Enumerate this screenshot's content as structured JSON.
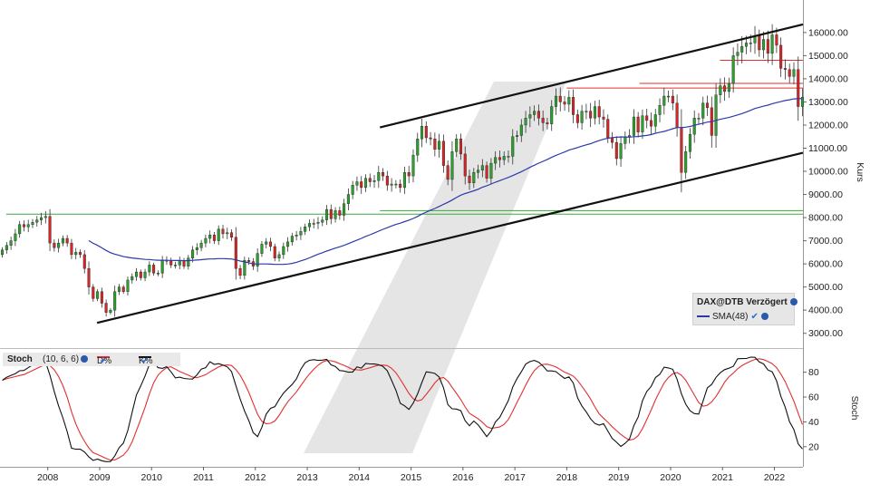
{
  "chart_data": [
    {
      "type": "candlestick",
      "instrument": "DAX@DTB Verzögert",
      "ylabel": "Kurs",
      "y_ticks": [
        "3000.00",
        "4000.00",
        "5000.00",
        "6000.00",
        "7000.00",
        "8000.00",
        "9000.00",
        "10000.00",
        "11000.00",
        "12000.00",
        "13000.00",
        "14000.00",
        "15000.00",
        "16000.00"
      ],
      "ylim": [
        2400,
        16700
      ],
      "x_ticks": [
        "2008",
        "2009",
        "2010",
        "2011",
        "2012",
        "2013",
        "2014",
        "2015",
        "2016",
        "2017",
        "2018",
        "2019",
        "2020",
        "2021",
        "2022"
      ],
      "xlim": [
        2007.08,
        2022.55
      ],
      "legend_position": "bottom-right",
      "colors": {
        "up": "#2ca02c",
        "down": "#d62728",
        "sma": "#2b3aa8",
        "channel": "#111111",
        "resistance": "#e0312f",
        "support": "#3aa83a"
      },
      "closes_by_year": {
        "2007": [
          6600,
          6800,
          7000,
          7300,
          7700,
          7600,
          7700,
          7800,
          7900,
          8000,
          8050
        ],
        "2008": [
          6900,
          6700,
          6900,
          7100,
          6900,
          6400,
          6500,
          6400,
          5800,
          5000,
          4500,
          4800
        ],
        "2009": [
          4300,
          3900,
          4000,
          4800,
          5000,
          4800,
          5300,
          5450,
          5650,
          5400,
          5650,
          5950
        ],
        "2010": [
          5600,
          5600,
          6150,
          6150,
          5950,
          5950,
          6150,
          5900,
          6250,
          6600,
          6700,
          6900
        ],
        "2011": [
          7100,
          7250,
          7000,
          7500,
          7300,
          7350,
          7150,
          5800,
          5500,
          6150,
          6100,
          5900
        ],
        "2012": [
          6450,
          6850,
          6950,
          6750,
          6250,
          6400,
          6750,
          6950,
          7200,
          7250,
          7400,
          7600
        ],
        "2013": [
          7750,
          7750,
          7800,
          7900,
          8350,
          7950,
          8300,
          8100,
          8600,
          9000,
          9400,
          9550
        ],
        "2014": [
          9300,
          9700,
          9550,
          9600,
          9950,
          9800,
          9400,
          9450,
          9450,
          9300,
          9950,
          9800
        ],
        "2015": [
          10700,
          11400,
          11950,
          11450,
          11400,
          10950,
          11300,
          10250,
          9650,
          10850,
          11400,
          10750
        ],
        "2016": [
          9800,
          9500,
          9950,
          10050,
          10250,
          9700,
          10350,
          10600,
          10500,
          10650,
          10650,
          11500
        ],
        "2017": [
          11550,
          12000,
          12300,
          12450,
          12600,
          12300,
          12100,
          12050,
          12800,
          13250,
          13000,
          12900
        ],
        "2018": [
          13200,
          12450,
          12100,
          12600,
          12600,
          12300,
          12800,
          12350,
          12250,
          11450,
          11250,
          10550
        ],
        "2019": [
          11200,
          11500,
          11550,
          12350,
          11700,
          12400,
          12200,
          11950,
          12450,
          12850,
          13250,
          13250
        ],
        "2020": [
          12950,
          11900,
          9950,
          10850,
          11600,
          12300,
          12300,
          12950,
          12750,
          11550,
          13300,
          13700
        ],
        "2021": [
          13450,
          13800,
          15000,
          15150,
          15400,
          15550,
          15550,
          15850,
          15250,
          15700,
          15100,
          15900
        ],
        "2022": [
          15450,
          14450,
          14400,
          14100,
          14400,
          12800,
          13200
        ]
      },
      "sma_label": "SMA(48)",
      "sma_period": 48,
      "channel_label": "",
      "horizontal_levels": [
        13600,
        13800,
        14800,
        8300,
        8150
      ]
    },
    {
      "type": "line",
      "indicator": "Stoch",
      "params": "(10, 6, 6)",
      "series": [
        {
          "name": "D%",
          "color": "#e0312f"
        },
        {
          "name": "K%",
          "color": "#111111"
        }
      ],
      "ylabel": "Stoch",
      "y_ticks": [
        "20",
        "40",
        "60",
        "80"
      ],
      "ylim": [
        6,
        98
      ]
    }
  ]
}
